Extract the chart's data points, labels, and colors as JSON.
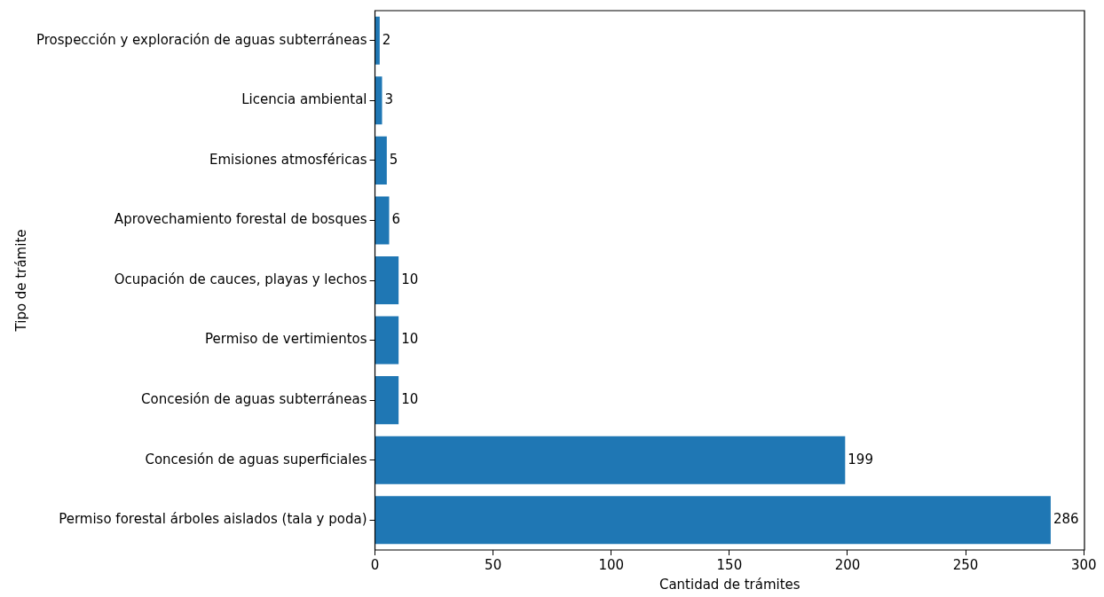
{
  "chart_data": {
    "type": "bar",
    "orientation": "horizontal",
    "xlabel": "Cantidad de trámites",
    "ylabel": "Tipo de trámite",
    "categories": [
      "Prospección y exploración de aguas subterráneas",
      "Licencia ambiental",
      "Emisiones atmosféricas",
      "Aprovechamiento forestal de bosques",
      "Ocupación de cauces, playas y lechos",
      "Permiso de vertimientos",
      "Concesión de aguas subterráneas",
      "Concesión de aguas superficiales",
      "Permiso forestal árboles aislados (tala y poda)"
    ],
    "values": [
      2,
      3,
      5,
      6,
      10,
      10,
      10,
      199,
      286
    ],
    "color": "#1f77b4",
    "xlim": [
      0,
      300.3
    ],
    "xticks": [
      0,
      50,
      100,
      150,
      200,
      250,
      300
    ],
    "data_labels": true,
    "grid": false,
    "legend": false
  }
}
